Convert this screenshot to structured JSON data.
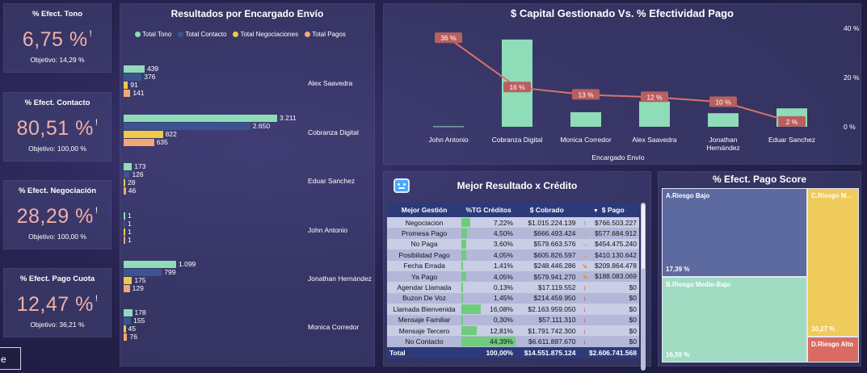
{
  "kpis": [
    {
      "title": "% Efect. Tono",
      "value": "6,75 %",
      "mark": "!",
      "objective": "Objetivo: 14,29 %"
    },
    {
      "title": "% Efect. Contacto",
      "value": "80,51 %",
      "mark": "!",
      "objective": "Objetivo: 100,00 %"
    },
    {
      "title": "% Efect. Negociación",
      "value": "28,29 %",
      "mark": "!",
      "objective": "Objetivo: 100,00 %"
    },
    {
      "title": "% Efect. Pago Cuota",
      "value": "12,47 %",
      "mark": "!",
      "objective": "Objetivo: 36,21 %"
    }
  ],
  "corner_label": "e",
  "bars_chart": {
    "title": "Resultados por Encargado Envío",
    "legend": [
      {
        "name": "Total Tono",
        "color": "#8fdcb8"
      },
      {
        "name": "Total Contacto",
        "color": "#3a5490"
      },
      {
        "name": "Total Negociaciones",
        "color": "#f0c84a"
      },
      {
        "name": "Total Pagos",
        "color": "#f2a874"
      }
    ],
    "groups": [
      {
        "name": "Alex Saavedra",
        "values": [
          439,
          376,
          91,
          141
        ],
        "labels": [
          "439",
          "376",
          "91",
          "141"
        ]
      },
      {
        "name": "Cobranza Digital",
        "values": [
          3211,
          2650,
          822,
          635
        ],
        "labels": [
          "3.211",
          "2.650",
          "822",
          "635"
        ]
      },
      {
        "name": "Eduar Sanchez",
        "values": [
          173,
          126,
          28,
          46
        ],
        "labels": [
          "173",
          "126",
          "28",
          "46"
        ]
      },
      {
        "name": "John Antonio",
        "values": [
          1,
          1,
          1,
          1
        ],
        "labels": [
          "1",
          "1",
          "1",
          "1"
        ]
      },
      {
        "name": "Jonathan Hernández",
        "values": [
          1099,
          799,
          175,
          129
        ],
        "labels": [
          "1.099",
          "799",
          "175",
          "129"
        ]
      },
      {
        "name": "Monica Corredor",
        "values": [
          178,
          155,
          45,
          76
        ],
        "labels": [
          "178",
          "155",
          "45",
          "76"
        ]
      }
    ]
  },
  "chart_data": {
    "type": "bar",
    "title": "$ Capital Gestionado Vs. % Efectividad Pago",
    "xlabel": "Encargado Envío",
    "categories": [
      "John Antonio",
      "Cobranza Digital",
      "Monica Corredor",
      "Alex Saavedra",
      "Jonathan Hernández",
      "Eduar Sanchez"
    ],
    "category_lines": [
      [
        "John Antonio"
      ],
      [
        "Cobranza Digital"
      ],
      [
        "Monica Corredor"
      ],
      [
        "Alex Saavedra"
      ],
      [
        "Jonathan",
        "Hernández"
      ],
      [
        "Eduar Sanchez"
      ]
    ],
    "series": [
      {
        "kind": "column",
        "values": [
          0.05,
          9.0,
          1.5,
          2.6,
          1.4,
          1.9
        ],
        "color": "#8fdcb8"
      },
      {
        "kind": "line",
        "values": [
          36,
          16,
          13,
          12,
          10,
          2
        ],
        "labels": [
          "36 %",
          "16 %",
          "13 %",
          "12 %",
          "10 %",
          "2 %"
        ],
        "color": "#d9736a"
      }
    ],
    "y2_ticks": [
      "40 %",
      "20 %",
      "0 %"
    ],
    "y2_tick_values": [
      40,
      20,
      0
    ],
    "y2lim": [
      0,
      40
    ],
    "grid": false
  },
  "table": {
    "title": "Mejor Resultado x Crédito",
    "headers": [
      "Mejor Gestión",
      "%TG Créditos",
      "$ Cobrado",
      "$ Pago"
    ],
    "rows": [
      {
        "gestion": "Negociacion",
        "tg": "7,22%",
        "tg_value": 7.22,
        "cobrado": "$1.015.224.139",
        "arrow": "up",
        "pago": "$766.503.227"
      },
      {
        "gestion": "Promesa Pago",
        "tg": "4,50%",
        "tg_value": 4.5,
        "cobrado": "$666.493.424",
        "arrow": "right",
        "pago": "$577.684.912"
      },
      {
        "gestion": "No Paga",
        "tg": "3,60%",
        "tg_value": 3.6,
        "cobrado": "$579.663.576",
        "arrow": "right",
        "pago": "$454.475.240"
      },
      {
        "gestion": "Posibilidad Pago",
        "tg": "4,05%",
        "tg_value": 4.05,
        "cobrado": "$605.826.597",
        "arrow": "right",
        "pago": "$410.130.642"
      },
      {
        "gestion": "Fecha Errada",
        "tg": "1,41%",
        "tg_value": 1.41,
        "cobrado": "$248.446.286",
        "arrow": "down-right",
        "pago": "$209.864.478"
      },
      {
        "gestion": "Ya Pago",
        "tg": "4,05%",
        "tg_value": 4.05,
        "cobrado": "$579.941.270",
        "arrow": "down-right",
        "pago": "$188.083.069"
      },
      {
        "gestion": "Agendar Llamada",
        "tg": "0,13%",
        "tg_value": 0.13,
        "cobrado": "$17.119.552",
        "arrow": "down",
        "pago": "$0"
      },
      {
        "gestion": "Buzon De Voz",
        "tg": "1,45%",
        "tg_value": 1.45,
        "cobrado": "$214.459.950",
        "arrow": "down",
        "pago": "$0"
      },
      {
        "gestion": "Llamada Bienvenida",
        "tg": "16,08%",
        "tg_value": 16.08,
        "cobrado": "$2.163.959.050",
        "arrow": "down",
        "pago": "$0"
      },
      {
        "gestion": "Mensaje Familiar",
        "tg": "0,30%",
        "tg_value": 0.3,
        "cobrado": "$57.111.310",
        "arrow": "down",
        "pago": "$0"
      },
      {
        "gestion": "Mensaje Tercero",
        "tg": "12,81%",
        "tg_value": 12.81,
        "cobrado": "$1.791.742.300",
        "arrow": "down",
        "pago": "$0"
      },
      {
        "gestion": "No Contacto",
        "tg": "44,39%",
        "tg_value": 44.39,
        "cobrado": "$6.611.887.670",
        "arrow": "down",
        "pago": "$0"
      }
    ],
    "total": {
      "label": "Total",
      "tg": "100,00%",
      "cobrado": "$14.551.875.124",
      "pago": "$2.606.741.568"
    },
    "arrow_colors": {
      "up": "#3ab04a",
      "right": "#e88a1a",
      "down-right": "#e88a1a",
      "down": "#e02a1a"
    }
  },
  "treemap": {
    "title": "% Efect. Pago Score",
    "cells": [
      {
        "label": "A.Riesgo Bajo",
        "value": "17,39 %",
        "color": "#5d6aa0"
      },
      {
        "label": "B.Riesgo Medio-Bajo",
        "value": "16,59 %",
        "color": "#9fdcc2"
      },
      {
        "label": "C.Riesgo M...",
        "value": "10,27 %",
        "color": "#eecb5a"
      },
      {
        "label": "D.Riesgo Alto",
        "value": "",
        "color": "#d96c62"
      }
    ]
  }
}
